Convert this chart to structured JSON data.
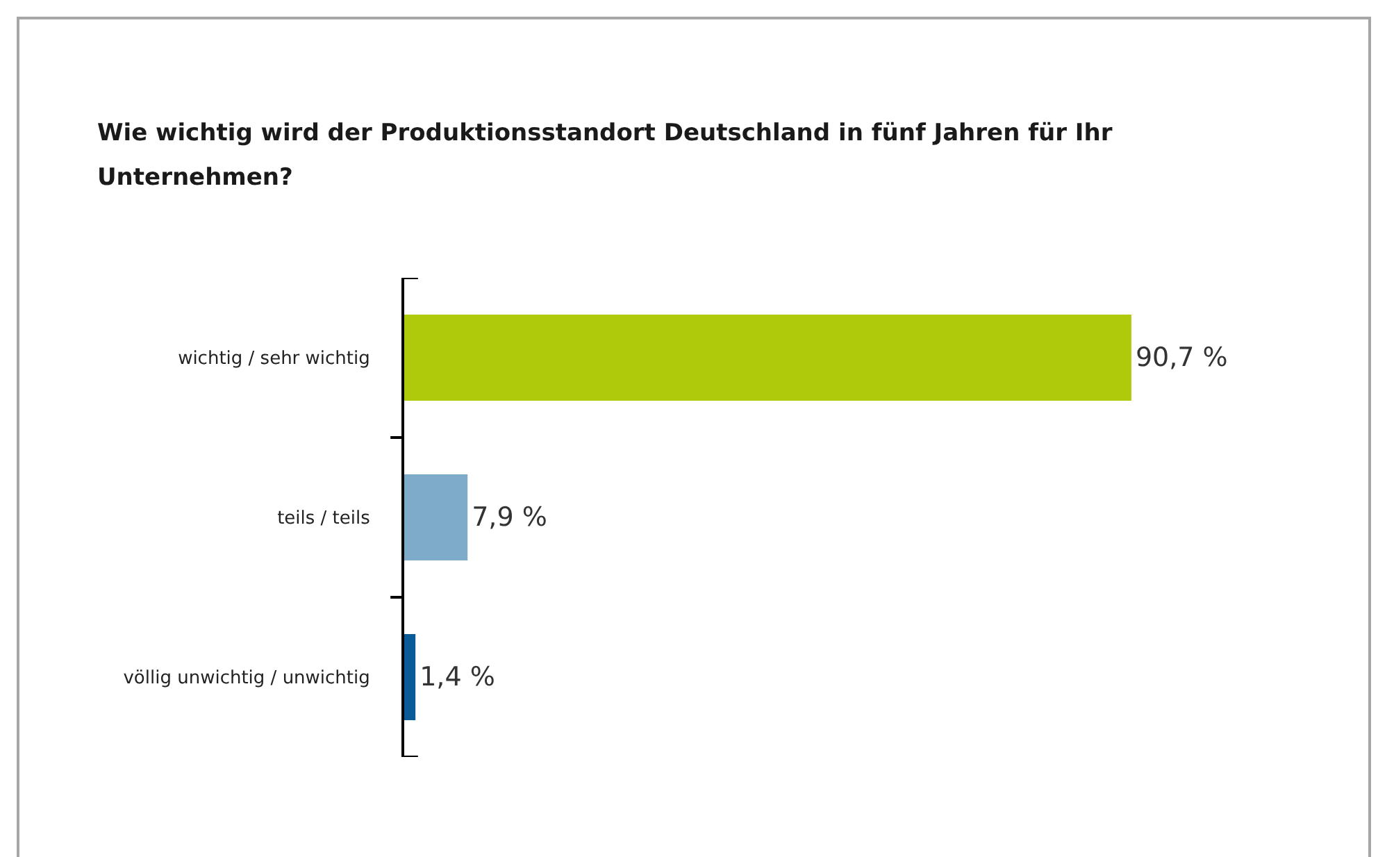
{
  "chart_data": {
    "type": "bar",
    "orientation": "horizontal",
    "title": "Wie wichtig wird der Produktionsstandort Deutschland in fünf Jahren für Ihr Unternehmen?",
    "categories": [
      "wichtig / sehr wichtig",
      "teils / teils",
      "völlig unwichtig / unwichtig"
    ],
    "values": [
      90.7,
      7.9,
      1.4
    ],
    "colors": [
      "#afca0b",
      "#7fabcb",
      "#0a5a98"
    ],
    "value_labels": [
      "90,7 %",
      "7,9 %",
      "1,4 %"
    ],
    "tick_labels": "y"
  }
}
